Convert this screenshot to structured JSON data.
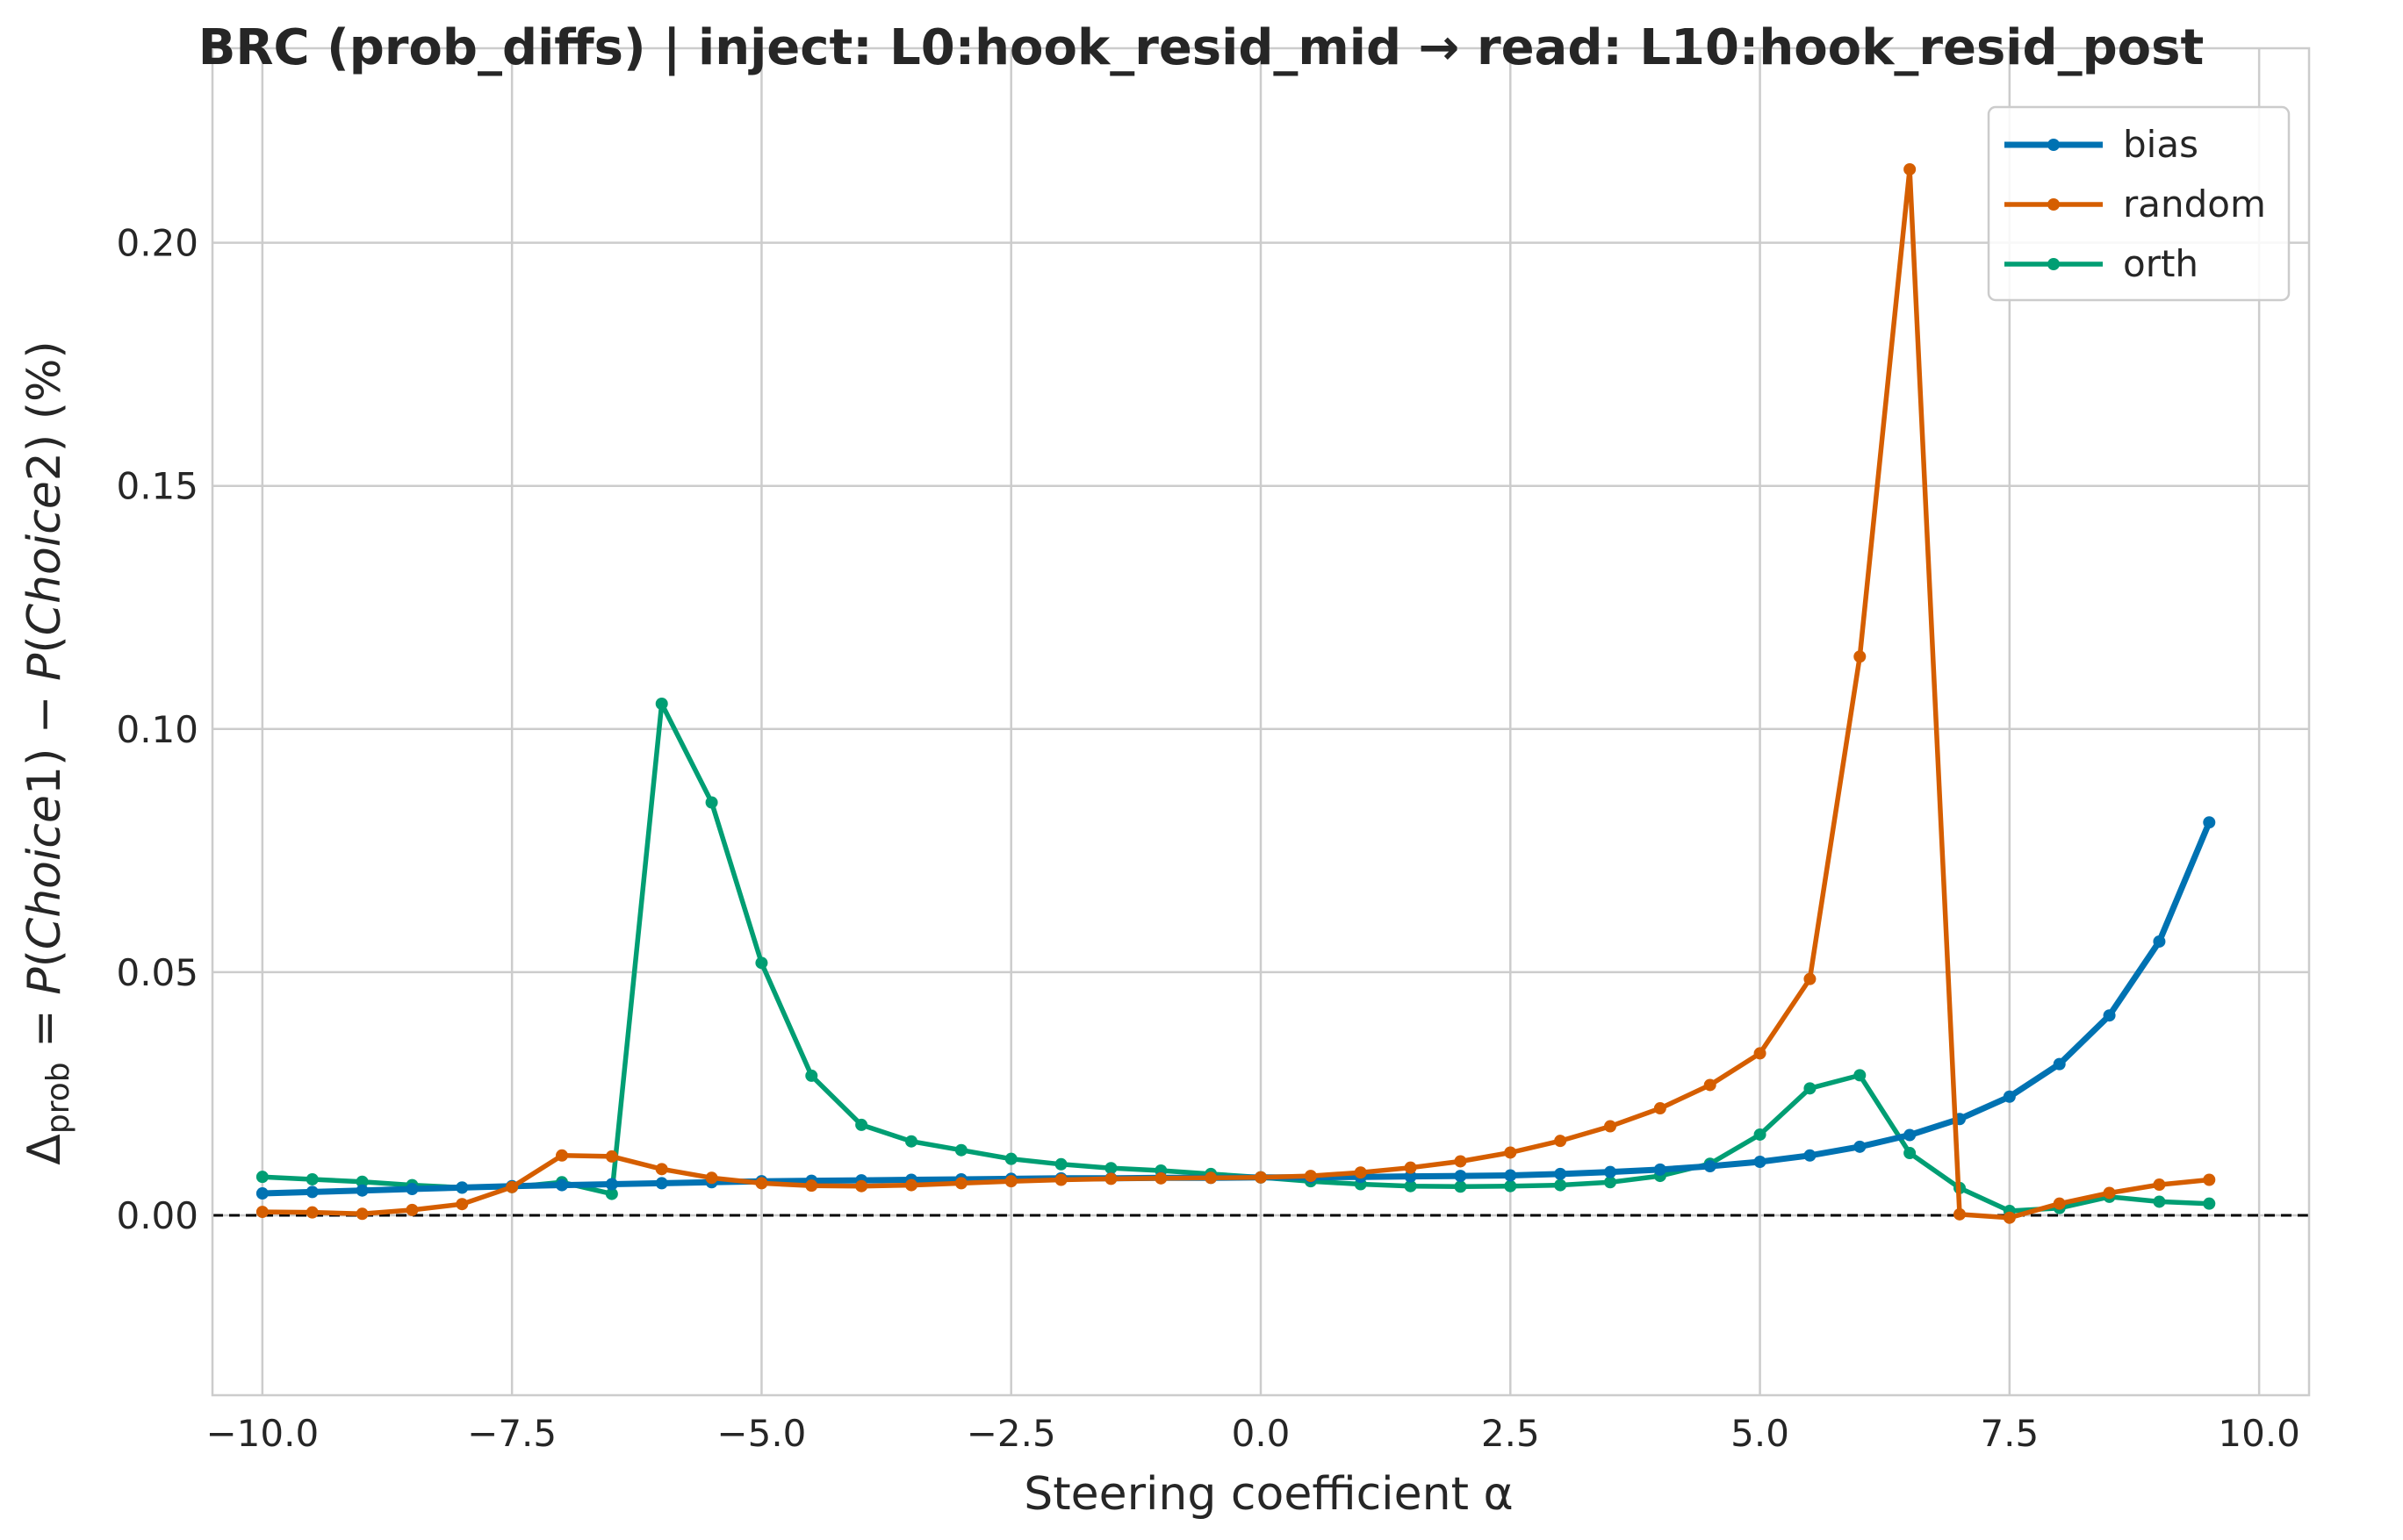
{
  "chart_data": {
    "type": "line",
    "title": "BRC (prob_diffs) | inject: L0:hook_resid_mid → read: L10:hook_resid_post",
    "xlabel": "Steering coefficient α",
    "ylabel": "Δprob = P(Choice1) − P(Choice2) (%)",
    "ylabel_parts": {
      "delta": "Δ",
      "sub": "prob",
      "eq": " = ",
      "p1": "P",
      "c1": "Choice",
      "n1": "1",
      "minus": " − ",
      "p2": "P",
      "c2": "Choice",
      "n2": "2",
      "pct": " (%)"
    },
    "xlim": [
      -10.5,
      10.5
    ],
    "ylim": [
      -0.037,
      0.24
    ],
    "xticks": [
      -10.0,
      -7.5,
      -5.0,
      -2.5,
      0.0,
      2.5,
      5.0,
      7.5,
      10.0
    ],
    "xtick_labels": [
      "−10.0",
      "−7.5",
      "−5.0",
      "−2.5",
      "0.0",
      "2.5",
      "5.0",
      "7.5",
      "10.0"
    ],
    "yticks": [
      0.0,
      0.05,
      0.1,
      0.15,
      0.2
    ],
    "ytick_labels": [
      "0.00",
      "0.05",
      "0.10",
      "0.15",
      "0.20"
    ],
    "grid": true,
    "reference_line": {
      "y": 0.0,
      "style": "dashed",
      "color": "#000000"
    },
    "legend_position": "top-right",
    "x": [
      -10.0,
      -9.5,
      -9.0,
      -8.5,
      -8.0,
      -7.5,
      -7.0,
      -6.5,
      -6.0,
      -5.5,
      -5.0,
      -4.5,
      -4.0,
      -3.5,
      -3.0,
      -2.5,
      -2.0,
      -1.5,
      -1.0,
      -0.5,
      0.0,
      0.5,
      1.0,
      1.5,
      2.0,
      2.5,
      3.0,
      3.5,
      4.0,
      4.5,
      5.0,
      5.5,
      6.0,
      6.5,
      7.0,
      7.5,
      8.0,
      8.5,
      9.0,
      9.5
    ],
    "series": [
      {
        "name": "bias",
        "color": "#0072b2",
        "values": [
          0.0045,
          0.0048,
          0.0051,
          0.0054,
          0.0057,
          0.006,
          0.0062,
          0.0064,
          0.0066,
          0.0068,
          0.007,
          0.0071,
          0.0072,
          0.0073,
          0.0074,
          0.0075,
          0.0076,
          0.0076,
          0.0077,
          0.0077,
          0.0078,
          0.0078,
          0.0079,
          0.008,
          0.0081,
          0.0082,
          0.0085,
          0.0089,
          0.0094,
          0.0101,
          0.011,
          0.0123,
          0.0141,
          0.0165,
          0.0198,
          0.0244,
          0.0311,
          0.0411,
          0.0563,
          0.0808
        ]
      },
      {
        "name": "random",
        "color": "#d55e00",
        "values": [
          0.0007,
          0.0006,
          0.0003,
          0.0011,
          0.0023,
          0.0058,
          0.0123,
          0.0121,
          0.0095,
          0.0077,
          0.0066,
          0.0061,
          0.006,
          0.0062,
          0.0066,
          0.007,
          0.0073,
          0.0075,
          0.0076,
          0.0077,
          0.0078,
          0.0081,
          0.0088,
          0.0098,
          0.0111,
          0.0129,
          0.0153,
          0.0183,
          0.022,
          0.0268,
          0.0333,
          0.0486,
          0.1149,
          0.2151,
          0.0002,
          -0.0005,
          0.0024,
          0.0046,
          0.0063,
          0.0073
        ]
      },
      {
        "name": "orth",
        "color": "#009e73",
        "values": [
          0.0079,
          0.0074,
          0.0069,
          0.0062,
          0.0057,
          0.0058,
          0.0068,
          0.0044,
          0.1052,
          0.0849,
          0.0519,
          0.0287,
          0.0186,
          0.0152,
          0.0134,
          0.0116,
          0.0105,
          0.0097,
          0.0092,
          0.0085,
          0.0078,
          0.007,
          0.0064,
          0.006,
          0.0059,
          0.006,
          0.0062,
          0.0068,
          0.0081,
          0.0106,
          0.0166,
          0.0261,
          0.0288,
          0.0128,
          0.0056,
          0.0009,
          0.0015,
          0.0038,
          0.0028,
          0.0024
        ]
      }
    ]
  }
}
